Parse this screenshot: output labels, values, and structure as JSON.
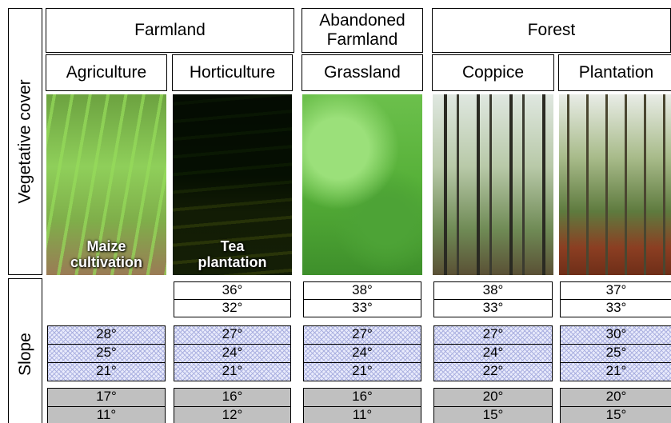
{
  "side_labels": [
    "Vegetative cover",
    "Slope"
  ],
  "groups": [
    {
      "label": "Farmland",
      "columns": [
        0,
        1
      ]
    },
    {
      "label": "Abandoned Farmland",
      "columns": [
        2
      ]
    },
    {
      "label": "Forest",
      "columns": [
        3,
        4
      ]
    }
  ],
  "columns": [
    {
      "name": "Agriculture",
      "photo_label": "Maize cultivation",
      "slopes": {
        "high": [],
        "mid": [
          "28°",
          "25°",
          "21°"
        ],
        "low": [
          "17°",
          "11°"
        ]
      }
    },
    {
      "name": "Horticulture",
      "photo_label": "Tea plantation",
      "slopes": {
        "high": [
          "36°",
          "32°"
        ],
        "mid": [
          "27°",
          "24°",
          "21°"
        ],
        "low": [
          "16°",
          "12°"
        ]
      }
    },
    {
      "name": "Grassland",
      "slopes": {
        "high": [
          "38°",
          "33°"
        ],
        "mid": [
          "27°",
          "24°",
          "21°"
        ],
        "low": [
          "16°",
          "11°"
        ]
      }
    },
    {
      "name": "Coppice",
      "slopes": {
        "high": [
          "38°",
          "33°"
        ],
        "mid": [
          "27°",
          "24°",
          "22°"
        ],
        "low": [
          "20°",
          "15°"
        ]
      }
    },
    {
      "name": "Plantation",
      "slopes": {
        "high": [
          "37°",
          "33°"
        ],
        "mid": [
          "30°",
          "25°",
          "21°"
        ],
        "low": [
          "20°",
          "15°"
        ]
      }
    }
  ]
}
